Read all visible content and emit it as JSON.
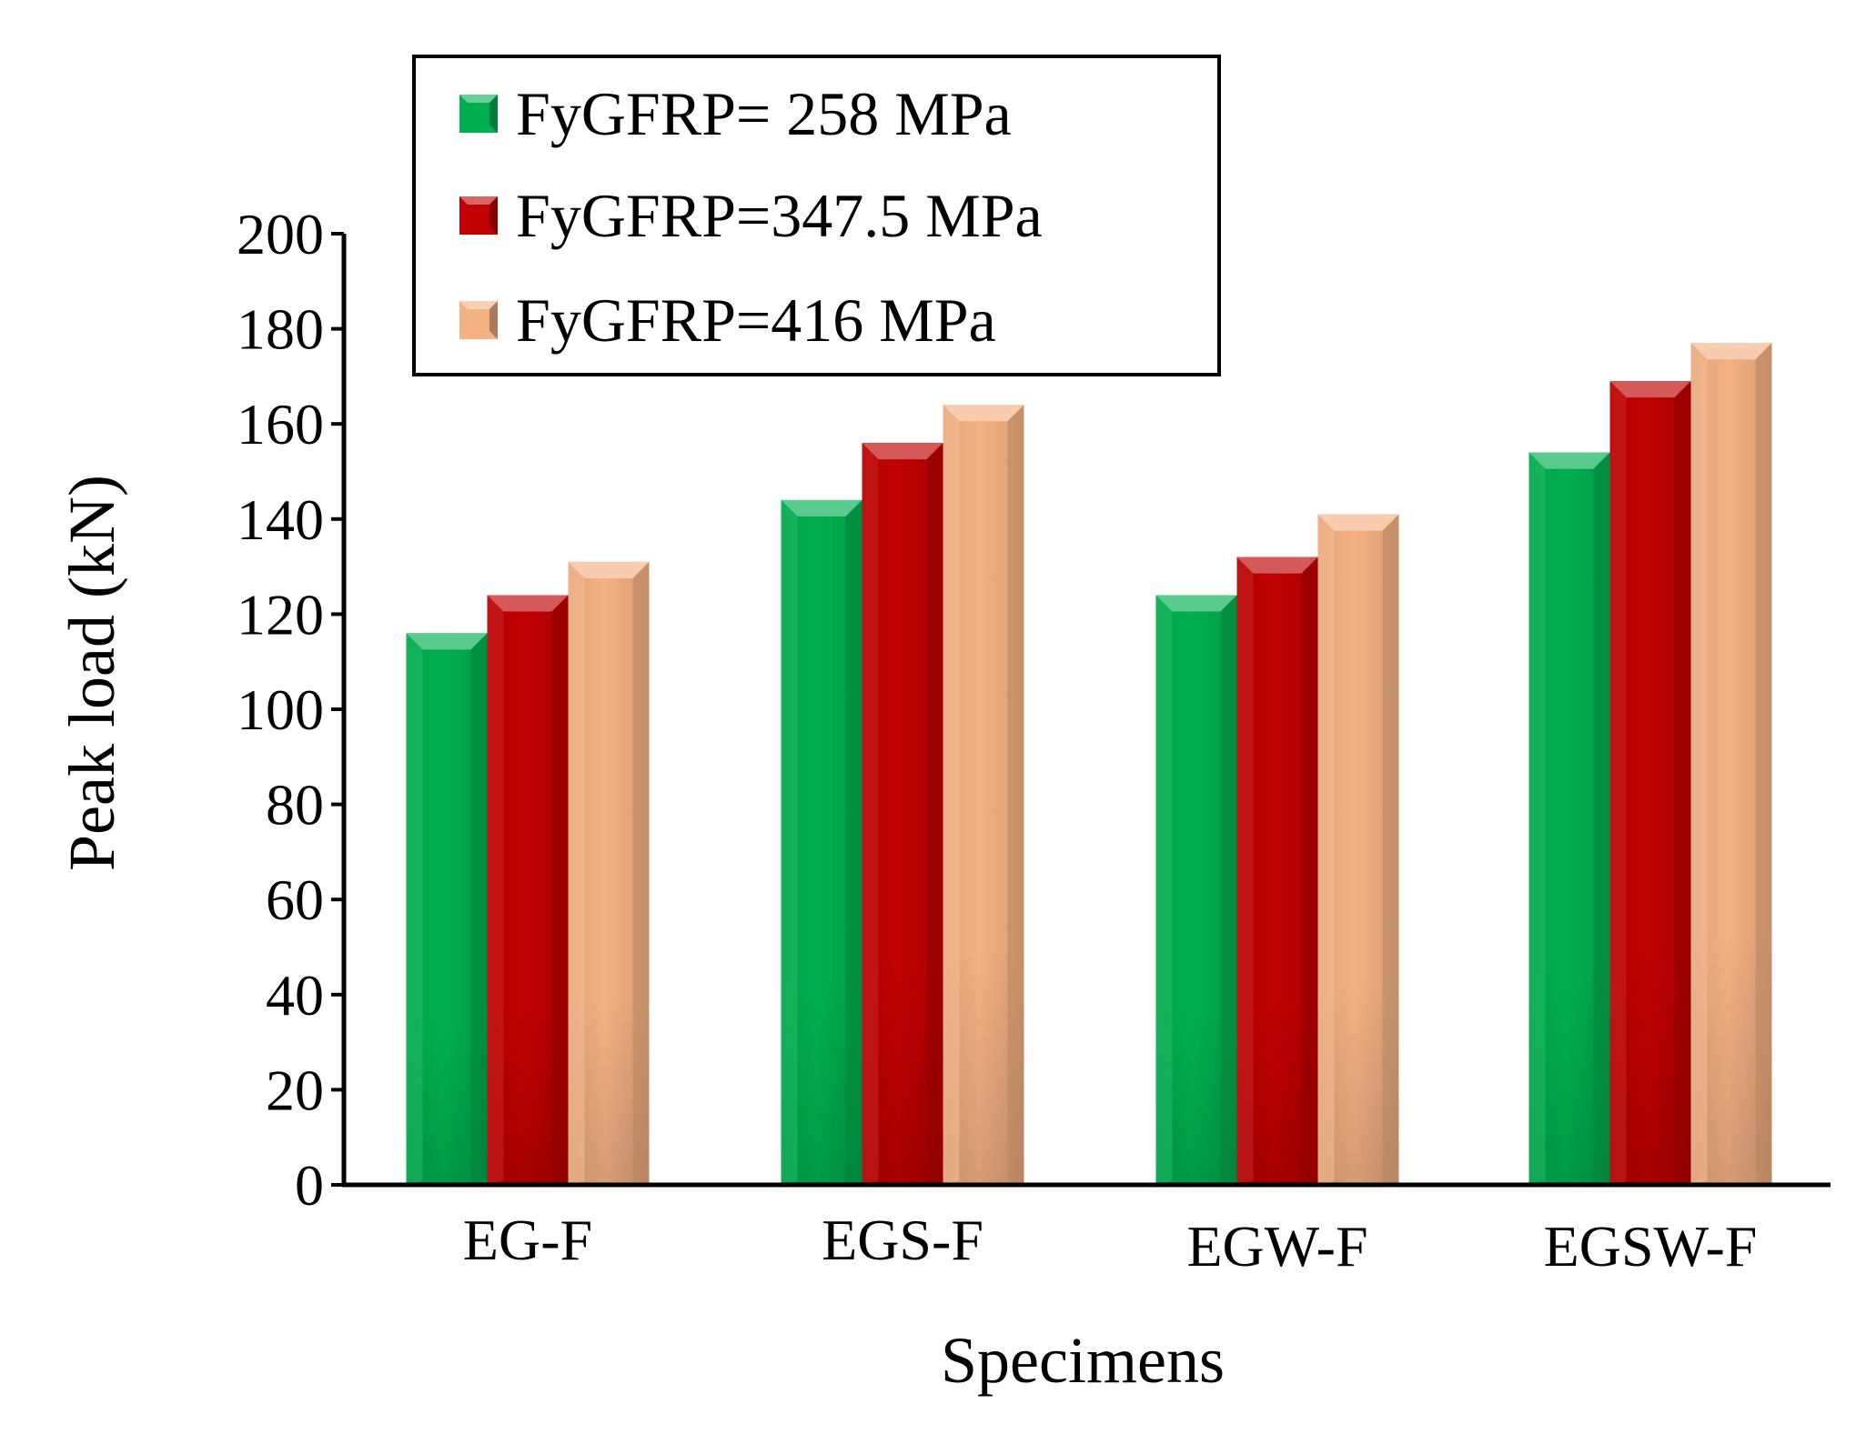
{
  "chart_data": {
    "type": "bar",
    "title": "",
    "xlabel": "Specimens",
    "ylabel": "Peak load (kN)",
    "ylim": [
      0,
      200
    ],
    "yticks": [
      0,
      20,
      40,
      60,
      80,
      100,
      120,
      140,
      160,
      180,
      200
    ],
    "categories": [
      "EG-F",
      "EGS-F",
      "EGW-F",
      "EGSW-F"
    ],
    "series": [
      {
        "name": "FyGFRP= 258 MPa",
        "values": [
          116,
          144,
          124,
          154
        ],
        "color": "#00b050"
      },
      {
        "name": "FyGFRP=347.5 MPa",
        "values": [
          124,
          156,
          132,
          169
        ],
        "color": "#c00000"
      },
      {
        "name": "FyGFRP=416 MPa",
        "values": [
          131,
          164,
          141,
          177
        ],
        "color": "#f4b183"
      }
    ],
    "legend_position": "top-left",
    "grid": false
  }
}
